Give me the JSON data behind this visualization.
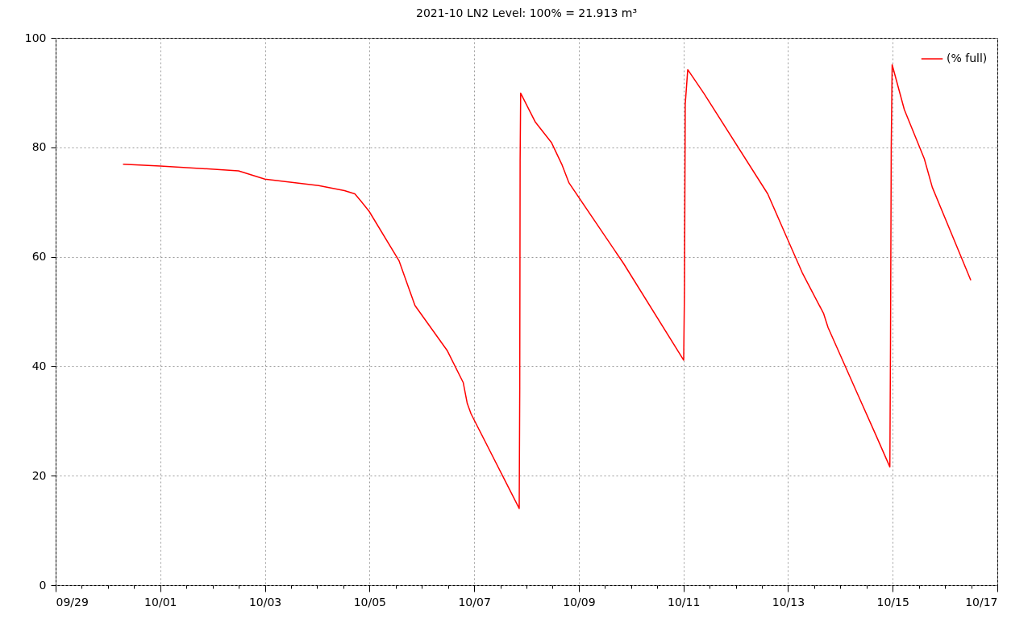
{
  "chart_data": {
    "type": "line",
    "title": "2021-10 LN2 Level: 100% = 21.913 m³",
    "x": [
      "2021-09-30T06:55",
      "2021-10-01T00:00",
      "2021-10-02T11:54",
      "2021-10-03T00:00",
      "2021-10-04T00:40",
      "2021-10-04T12:30",
      "2021-10-04T17:15",
      "2021-10-04T19:50",
      "2021-10-04T23:50",
      "2021-10-05T13:30",
      "2021-10-05T20:50",
      "2021-10-06T11:35",
      "2021-10-06T19:00",
      "2021-10-06T20:50",
      "2021-10-06T22:35",
      "2021-10-07T20:40",
      "2021-10-07T20:55",
      "2021-10-07T21:05",
      "2021-10-07T21:20",
      "2021-10-08T04:05",
      "2021-10-08T11:25",
      "2021-10-08T16:12",
      "2021-10-08T19:30",
      "2021-10-09T20:30",
      "2021-10-11T00:07",
      "2021-10-11T00:30",
      "2021-10-11T00:50",
      "2021-10-11T01:59",
      "2021-10-11T09:20",
      "2021-10-12T14:40",
      "2021-10-13T00:00",
      "2021-10-13T06:30",
      "2021-10-13T16:20",
      "2021-10-13T18:20",
      "2021-10-14T07:15",
      "2021-10-14T16:25",
      "2021-10-14T22:42",
      "2021-10-14T23:00",
      "2021-10-14T23:20",
      "2021-10-14T23:45",
      "2021-10-15T05:20",
      "2021-10-15T14:30",
      "2021-10-15T18:10",
      "2021-10-16T11:50"
    ],
    "series": [
      {
        "name": "(% full)",
        "color": "#ff0000",
        "values": [
          76.9,
          76.6,
          75.7,
          74.2,
          73.0,
          72.1,
          71.5,
          70.3,
          68.3,
          59.3,
          51.1,
          42.9,
          37.0,
          33.2,
          31.3,
          14.0,
          36.2,
          77.5,
          89.9,
          84.6,
          80.9,
          76.9,
          73.5,
          58.8,
          41.1,
          54.8,
          87.9,
          94.2,
          89.9,
          71.5,
          63.0,
          57.1,
          49.6,
          47.1,
          35.5,
          27.3,
          21.6,
          44.4,
          80.2,
          95.1,
          86.9,
          77.9,
          72.7,
          55.7
        ]
      }
    ],
    "xlim": [
      "2021-09-29",
      "2021-10-17"
    ],
    "xticks": [
      {
        "value": "2021-09-29",
        "label": "09/29"
      },
      {
        "value": "2021-09-29T12:00",
        "label": null
      },
      {
        "value": "2021-09-30",
        "label": null
      },
      {
        "value": "2021-09-30T12:00",
        "label": null
      },
      {
        "value": "2021-10-01",
        "label": "10/01"
      },
      {
        "value": "2021-10-01T12:00",
        "label": null
      },
      {
        "value": "2021-10-02",
        "label": null
      },
      {
        "value": "2021-10-02T12:00",
        "label": null
      },
      {
        "value": "2021-10-03",
        "label": "10/03"
      },
      {
        "value": "2021-10-03T12:00",
        "label": null
      },
      {
        "value": "2021-10-04",
        "label": null
      },
      {
        "value": "2021-10-04T12:00",
        "label": null
      },
      {
        "value": "2021-10-05",
        "label": "10/05"
      },
      {
        "value": "2021-10-05T12:00",
        "label": null
      },
      {
        "value": "2021-10-06",
        "label": null
      },
      {
        "value": "2021-10-06T12:00",
        "label": null
      },
      {
        "value": "2021-10-07",
        "label": "10/07"
      },
      {
        "value": "2021-10-07T12:00",
        "label": null
      },
      {
        "value": "2021-10-08",
        "label": null
      },
      {
        "value": "2021-10-08T12:00",
        "label": null
      },
      {
        "value": "2021-10-09",
        "label": "10/09"
      },
      {
        "value": "2021-10-09T12:00",
        "label": null
      },
      {
        "value": "2021-10-10",
        "label": null
      },
      {
        "value": "2021-10-10T12:00",
        "label": null
      },
      {
        "value": "2021-10-11",
        "label": "10/11"
      },
      {
        "value": "2021-10-11T12:00",
        "label": null
      },
      {
        "value": "2021-10-12",
        "label": null
      },
      {
        "value": "2021-10-12T12:00",
        "label": null
      },
      {
        "value": "2021-10-13",
        "label": "10/13"
      },
      {
        "value": "2021-10-13T12:00",
        "label": null
      },
      {
        "value": "2021-10-14",
        "label": null
      },
      {
        "value": "2021-10-14T12:00",
        "label": null
      },
      {
        "value": "2021-10-15",
        "label": "10/15"
      },
      {
        "value": "2021-10-15T12:00",
        "label": null
      },
      {
        "value": "2021-10-16",
        "label": null
      },
      {
        "value": "2021-10-16T12:00",
        "label": null
      },
      {
        "value": "2021-10-17",
        "label": "10/17"
      }
    ],
    "ylim": [
      0,
      100
    ],
    "yticks": [
      0,
      20,
      40,
      60,
      80,
      100
    ],
    "grid": true,
    "legend": "top right",
    "marker": "none",
    "line_style": "solid"
  }
}
